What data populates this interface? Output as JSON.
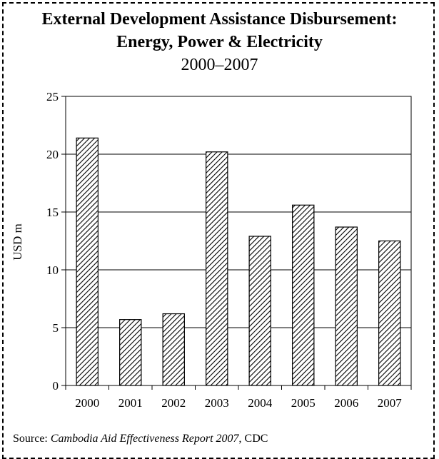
{
  "chart_data": {
    "type": "bar",
    "title_line1": "External Development Assistance Disbursement:",
    "title_line2": "Energy, Power & Electricity",
    "subtitle": "2000–2007",
    "xlabel": "",
    "ylabel": "USD m",
    "ylim": [
      0,
      25
    ],
    "yticks": [
      0,
      5,
      10,
      15,
      20,
      25
    ],
    "grid": true,
    "legend": "none",
    "categories": [
      "2000",
      "2001",
      "2002",
      "2003",
      "2004",
      "2005",
      "2006",
      "2007"
    ],
    "series": [
      {
        "values": [
          21.4,
          5.7,
          6.2,
          20.2,
          12.9,
          15.6,
          13.7,
          12.5
        ]
      }
    ],
    "bar_fill": "diagonal-hatch",
    "colors": {
      "bar_stroke": "#000000",
      "hatch": "#000000",
      "grid": "#000000"
    }
  },
  "source": {
    "prefix": "Source: ",
    "title": "Cambodia Aid Effectiveness Report 2007",
    "suffix": ", CDC"
  }
}
